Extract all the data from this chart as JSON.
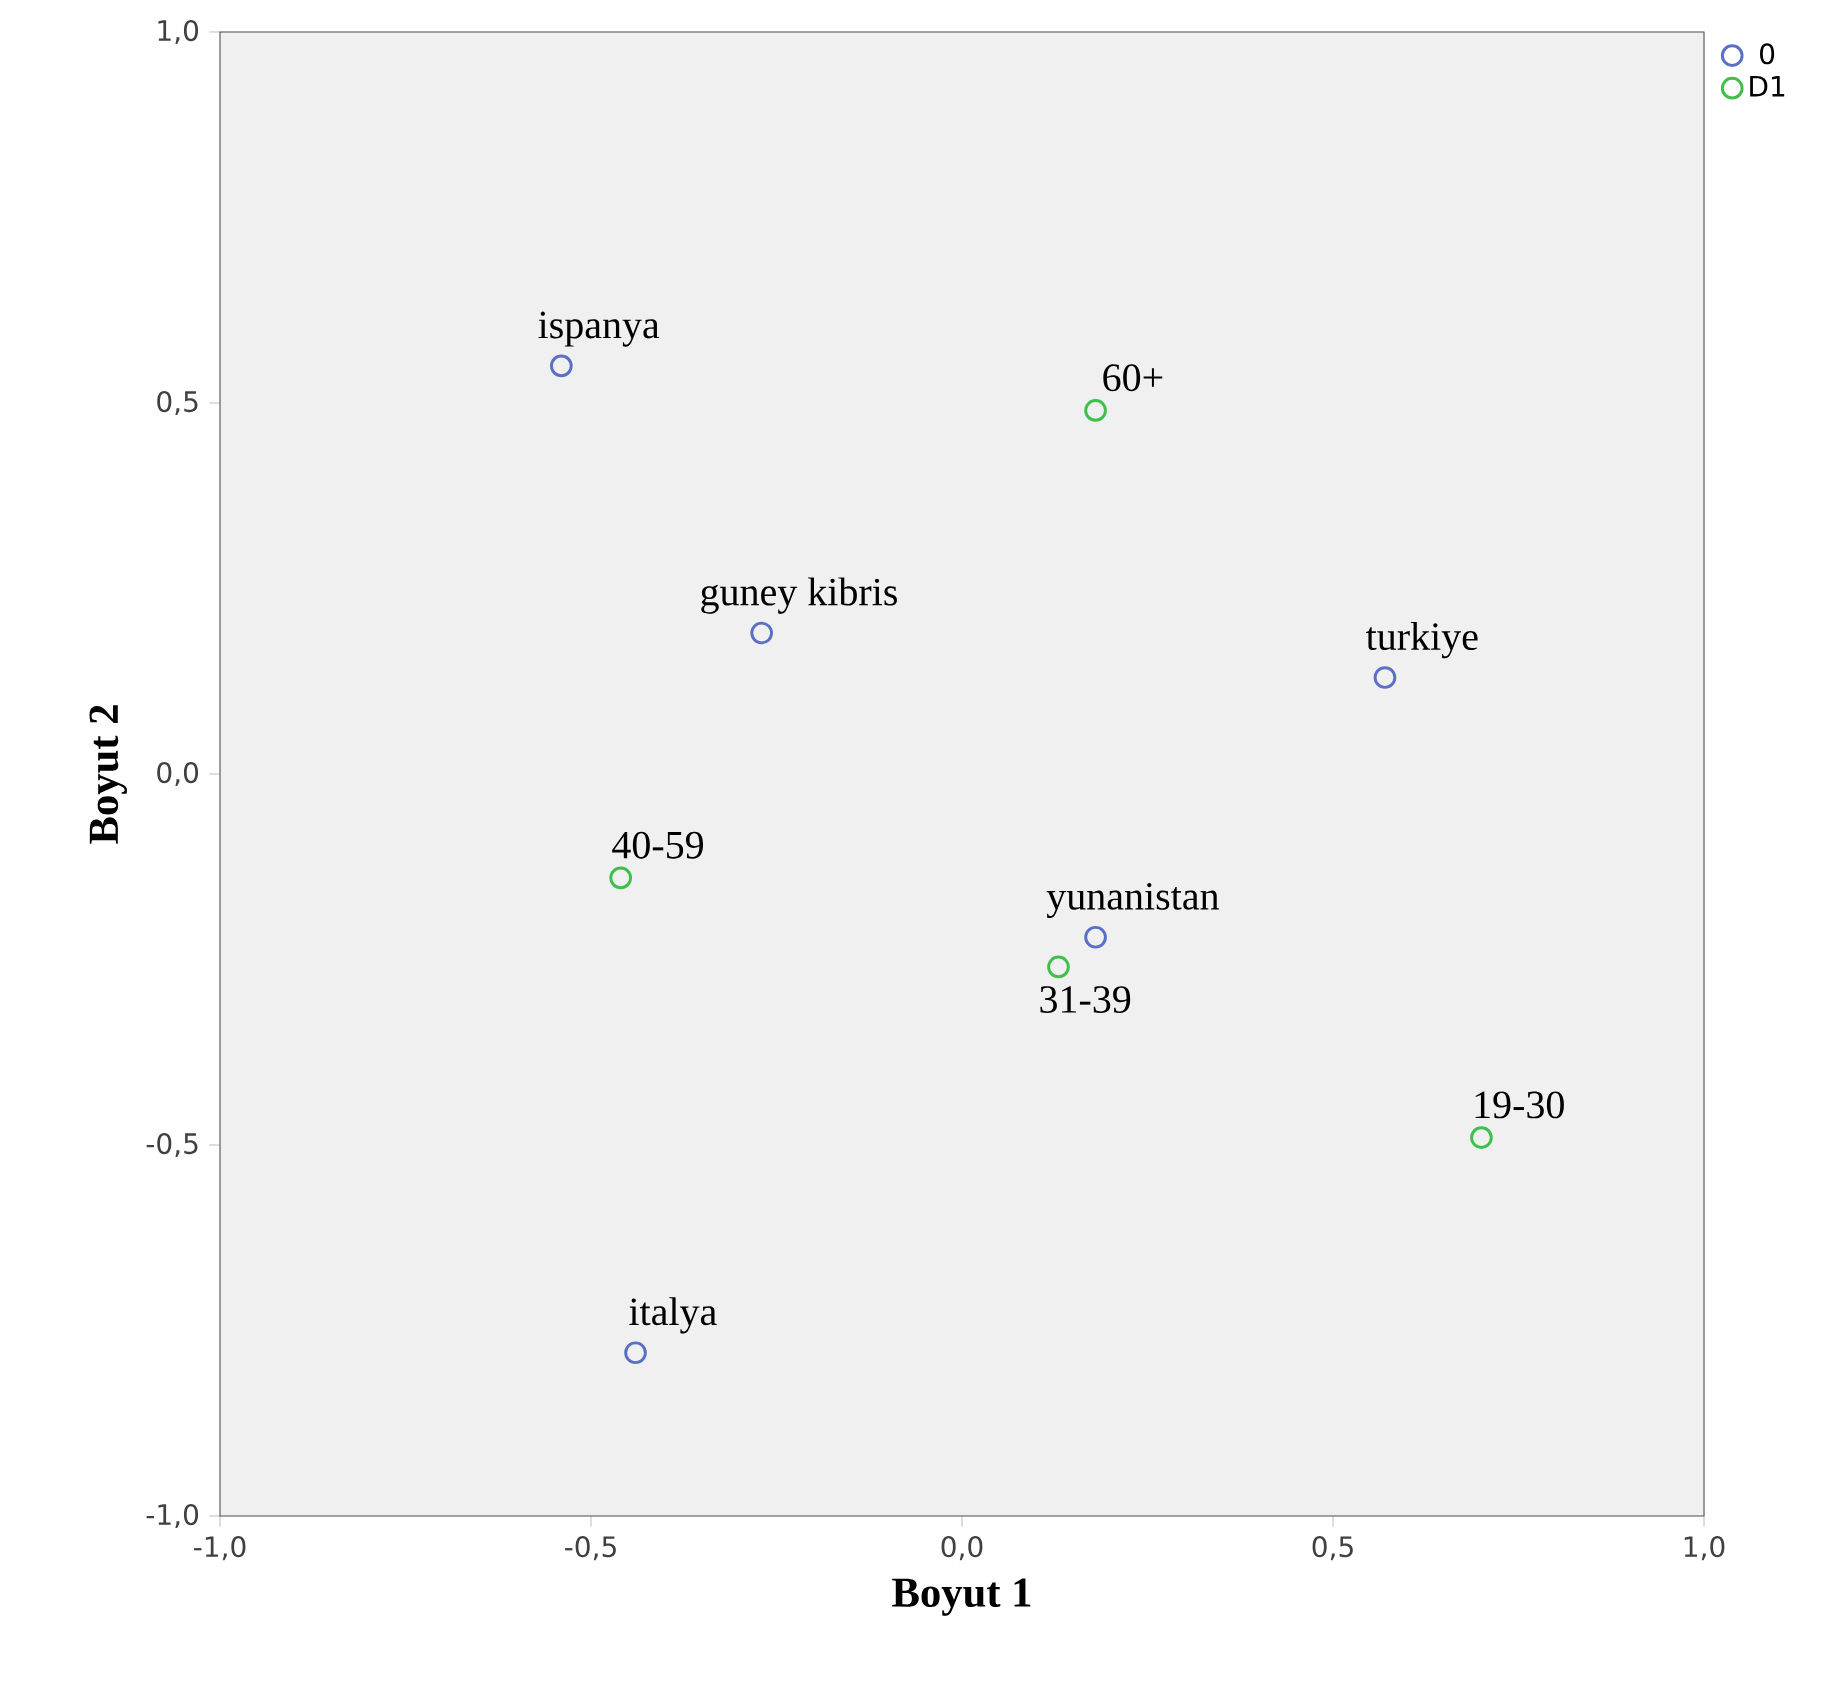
{
  "chart_data": {
    "type": "scatter",
    "xlabel": "Boyut 1",
    "ylabel": "Boyut 2",
    "xlim": [
      -1,
      1
    ],
    "ylim": [
      -1,
      1
    ],
    "xticks": [
      {
        "value": -1,
        "label": "-1,0"
      },
      {
        "value": -0.5,
        "label": "-0,5"
      },
      {
        "value": 0,
        "label": "0,0"
      },
      {
        "value": 0.5,
        "label": "0,5"
      },
      {
        "value": 1,
        "label": "1,0"
      }
    ],
    "yticks": [
      {
        "value": -1,
        "label": "-1,0"
      },
      {
        "value": -0.5,
        "label": "-0,5"
      },
      {
        "value": 0,
        "label": "0,0"
      },
      {
        "value": 0.5,
        "label": "0,5"
      },
      {
        "value": 1,
        "label": "1,0"
      }
    ],
    "marker": "circle",
    "legend": "top right",
    "series": [
      {
        "name": "0",
        "color": "#5b6fc6",
        "x": [
          -0.54,
          -0.27,
          0.57,
          0.18,
          -0.44
        ],
        "values": [
          0.55,
          0.19,
          0.13,
          -0.22,
          -0.78
        ]
      },
      {
        "name": "D1",
        "color": "#3fbf4c",
        "x": [
          0.18,
          -0.46,
          0.13,
          0.7
        ],
        "values": [
          0.49,
          -0.14,
          -0.26,
          -0.49
        ]
      }
    ],
    "annotations": [
      {
        "text": "ispanya",
        "x": -0.54,
        "y": 0.55
      },
      {
        "text": "guney kibris",
        "x": -0.27,
        "y": 0.19
      },
      {
        "text": "turkiye",
        "x": 0.57,
        "y": 0.13
      },
      {
        "text": "yunanistan",
        "x": 0.18,
        "y": -0.22
      },
      {
        "text": "italya",
        "x": -0.44,
        "y": -0.78
      },
      {
        "text": "60+",
        "x": 0.18,
        "y": 0.49
      },
      {
        "text": "40-59",
        "x": -0.46,
        "y": -0.14
      },
      {
        "text": "31-39",
        "x": 0.13,
        "y": -0.26
      },
      {
        "text": "19-30",
        "x": 0.7,
        "y": -0.49
      }
    ]
  }
}
